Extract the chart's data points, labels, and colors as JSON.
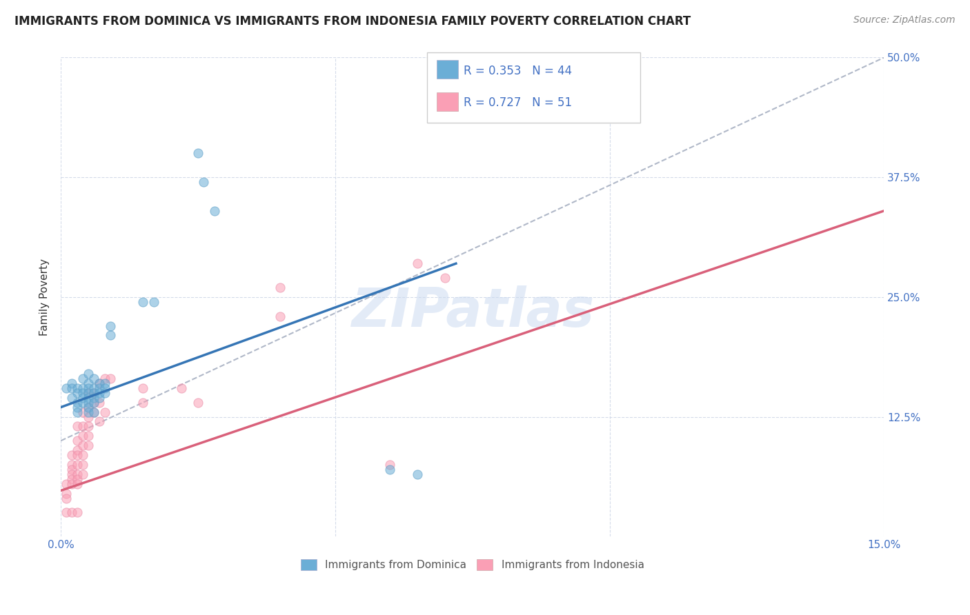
{
  "title": "IMMIGRANTS FROM DOMINICA VS IMMIGRANTS FROM INDONESIA FAMILY POVERTY CORRELATION CHART",
  "source": "Source: ZipAtlas.com",
  "ylabel": "Family Poverty",
  "xlim": [
    0.0,
    0.15
  ],
  "ylim": [
    0.0,
    0.5
  ],
  "yticks_right": [
    0.125,
    0.25,
    0.375,
    0.5
  ],
  "ytick_labels_right": [
    "12.5%",
    "25.0%",
    "37.5%",
    "50.0%"
  ],
  "dominica_color": "#6baed6",
  "dominica_edge": "#5a9ec6",
  "indonesia_color": "#fa9fb5",
  "indonesia_edge": "#e889a5",
  "dominica_line_color": "#3575b5",
  "indonesia_line_color": "#d9607a",
  "dominica_R": 0.353,
  "dominica_N": 44,
  "indonesia_R": 0.727,
  "indonesia_N": 51,
  "legend_label_dominica": "Immigrants from Dominica",
  "legend_label_indonesia": "Immigrants from Indonesia",
  "watermark": "ZIPatlas",
  "background_color": "#ffffff",
  "grid_color": "#d0d8e8",
  "blue_line_x0": 0.0,
  "blue_line_y0": 0.135,
  "blue_line_x1": 0.072,
  "blue_line_y1": 0.285,
  "pink_line_x0": 0.0,
  "pink_line_y0": 0.048,
  "pink_line_x1": 0.15,
  "pink_line_y1": 0.34,
  "gray_line_x0": 0.0,
  "gray_line_y0": 0.1,
  "gray_line_x1": 0.15,
  "gray_line_y1": 0.5,
  "dominica_scatter": [
    [
      0.001,
      0.155
    ],
    [
      0.002,
      0.16
    ],
    [
      0.002,
      0.155
    ],
    [
      0.003,
      0.155
    ],
    [
      0.003,
      0.15
    ],
    [
      0.003,
      0.14
    ],
    [
      0.003,
      0.135
    ],
    [
      0.004,
      0.165
    ],
    [
      0.004,
      0.155
    ],
    [
      0.004,
      0.15
    ],
    [
      0.004,
      0.145
    ],
    [
      0.004,
      0.14
    ],
    [
      0.005,
      0.17
    ],
    [
      0.005,
      0.16
    ],
    [
      0.005,
      0.155
    ],
    [
      0.005,
      0.15
    ],
    [
      0.005,
      0.145
    ],
    [
      0.005,
      0.14
    ],
    [
      0.005,
      0.135
    ],
    [
      0.005,
      0.13
    ],
    [
      0.006,
      0.165
    ],
    [
      0.006,
      0.155
    ],
    [
      0.006,
      0.15
    ],
    [
      0.006,
      0.145
    ],
    [
      0.006,
      0.14
    ],
    [
      0.006,
      0.13
    ],
    [
      0.007,
      0.16
    ],
    [
      0.007,
      0.155
    ],
    [
      0.007,
      0.15
    ],
    [
      0.007,
      0.145
    ],
    [
      0.008,
      0.16
    ],
    [
      0.008,
      0.155
    ],
    [
      0.008,
      0.15
    ],
    [
      0.009,
      0.22
    ],
    [
      0.009,
      0.21
    ],
    [
      0.015,
      0.245
    ],
    [
      0.017,
      0.245
    ],
    [
      0.025,
      0.4
    ],
    [
      0.026,
      0.37
    ],
    [
      0.028,
      0.34
    ],
    [
      0.002,
      0.145
    ],
    [
      0.003,
      0.13
    ],
    [
      0.06,
      0.07
    ],
    [
      0.065,
      0.065
    ]
  ],
  "indonesia_scatter": [
    [
      0.001,
      0.055
    ],
    [
      0.001,
      0.045
    ],
    [
      0.001,
      0.04
    ],
    [
      0.002,
      0.085
    ],
    [
      0.002,
      0.075
    ],
    [
      0.002,
      0.07
    ],
    [
      0.002,
      0.065
    ],
    [
      0.002,
      0.06
    ],
    [
      0.002,
      0.055
    ],
    [
      0.003,
      0.115
    ],
    [
      0.003,
      0.1
    ],
    [
      0.003,
      0.09
    ],
    [
      0.003,
      0.085
    ],
    [
      0.003,
      0.075
    ],
    [
      0.003,
      0.065
    ],
    [
      0.003,
      0.06
    ],
    [
      0.003,
      0.055
    ],
    [
      0.004,
      0.13
    ],
    [
      0.004,
      0.115
    ],
    [
      0.004,
      0.105
    ],
    [
      0.004,
      0.095
    ],
    [
      0.004,
      0.085
    ],
    [
      0.004,
      0.075
    ],
    [
      0.004,
      0.065
    ],
    [
      0.005,
      0.15
    ],
    [
      0.005,
      0.135
    ],
    [
      0.005,
      0.125
    ],
    [
      0.005,
      0.115
    ],
    [
      0.005,
      0.105
    ],
    [
      0.005,
      0.095
    ],
    [
      0.006,
      0.15
    ],
    [
      0.006,
      0.14
    ],
    [
      0.006,
      0.13
    ],
    [
      0.007,
      0.16
    ],
    [
      0.007,
      0.14
    ],
    [
      0.007,
      0.12
    ],
    [
      0.008,
      0.165
    ],
    [
      0.008,
      0.13
    ],
    [
      0.009,
      0.165
    ],
    [
      0.015,
      0.155
    ],
    [
      0.015,
      0.14
    ],
    [
      0.022,
      0.155
    ],
    [
      0.025,
      0.14
    ],
    [
      0.04,
      0.26
    ],
    [
      0.04,
      0.23
    ],
    [
      0.065,
      0.285
    ],
    [
      0.07,
      0.27
    ],
    [
      0.001,
      0.025
    ],
    [
      0.002,
      0.025
    ],
    [
      0.003,
      0.025
    ],
    [
      0.06,
      0.075
    ]
  ]
}
